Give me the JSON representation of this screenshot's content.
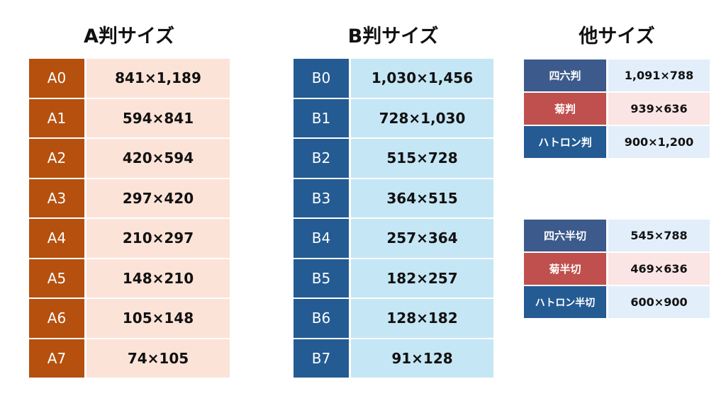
{
  "a_series": {
    "title": "A判サイズ",
    "label_color": "#b5500f",
    "value_color": "#fce3d8",
    "rows": [
      {
        "label": "A0",
        "value": "841×1,189"
      },
      {
        "label": "A1",
        "value": "594×841"
      },
      {
        "label": "A2",
        "value": "420×594"
      },
      {
        "label": "A3",
        "value": "297×420"
      },
      {
        "label": "A4",
        "value": "210×297"
      },
      {
        "label": "A5",
        "value": "148×210"
      },
      {
        "label": "A6",
        "value": "105×148"
      },
      {
        "label": "A7",
        "value": "74×105"
      }
    ]
  },
  "b_series": {
    "title": "B判サイズ",
    "label_color": "#245b93",
    "value_color": "#c5e6f5",
    "rows": [
      {
        "label": "B0",
        "value": "1,030×1,456"
      },
      {
        "label": "B1",
        "value": "728×1,030"
      },
      {
        "label": "B2",
        "value": "515×728"
      },
      {
        "label": "B3",
        "value": "364×515"
      },
      {
        "label": "B4",
        "value": "257×364"
      },
      {
        "label": "B5",
        "value": "182×257"
      },
      {
        "label": "B6",
        "value": "128×182"
      },
      {
        "label": "B7",
        "value": "91×128"
      }
    ]
  },
  "other": {
    "title": "他サイズ",
    "full": [
      {
        "label": "四六判",
        "value": "1,091×788",
        "label_color": "#3c5a8c",
        "value_color": "#e3eefb"
      },
      {
        "label": "菊判",
        "value": "939×636",
        "label_color": "#c0504d",
        "value_color": "#fbe4e4"
      },
      {
        "label": "ハトロン判",
        "value": "900×1,200",
        "label_color": "#245b93",
        "value_color": "#e3eefb"
      }
    ],
    "half": [
      {
        "label": "四六半切",
        "value": "545×788",
        "label_color": "#3c5a8c",
        "value_color": "#e3eefb"
      },
      {
        "label": "菊半切",
        "value": "469×636",
        "label_color": "#c0504d",
        "value_color": "#fbe4e4"
      },
      {
        "label": "ハトロン半切",
        "value": "600×900",
        "label_color": "#245b93",
        "value_color": "#e3eefb"
      }
    ]
  }
}
